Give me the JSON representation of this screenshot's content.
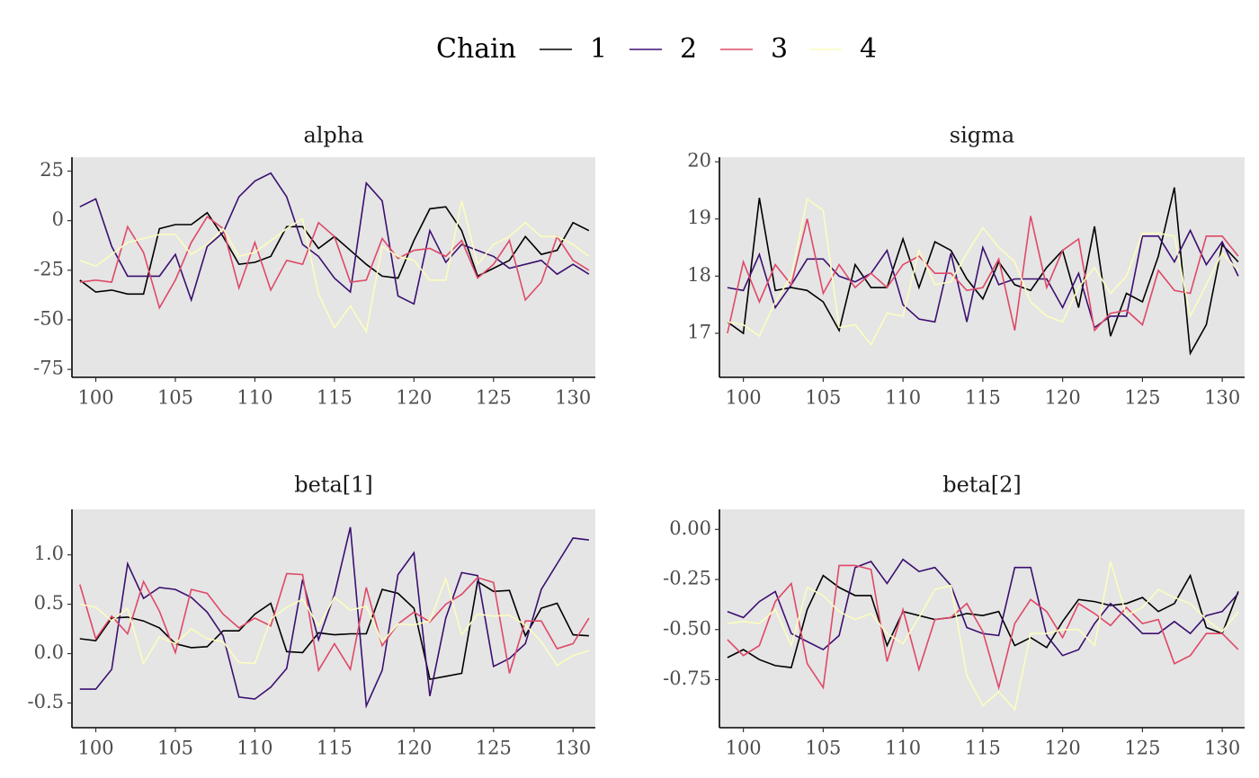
{
  "legend_title": "Chain",
  "chart_data": [
    {
      "type": "line",
      "title": "alpha",
      "x": [
        99,
        100,
        101,
        102,
        103,
        104,
        105,
        106,
        107,
        108,
        109,
        110,
        111,
        112,
        113,
        114,
        115,
        116,
        117,
        118,
        119,
        120,
        121,
        122,
        123,
        124,
        125,
        126,
        127,
        128,
        129,
        130,
        131
      ],
      "xlim": [
        98.5,
        131.4
      ],
      "xticks": [
        100,
        105,
        110,
        115,
        120,
        125,
        130
      ],
      "ylim": [
        -79,
        32
      ],
      "yticks": [
        25,
        0,
        -25,
        -50,
        -75
      ],
      "series": [
        {
          "name": "1",
          "color": "#000000",
          "values": [
            -30,
            -36,
            -35,
            -37,
            -37,
            -4,
            -2,
            -2,
            4,
            -8,
            -22,
            -21,
            -18,
            -3,
            -3,
            -14,
            -8,
            -15,
            -22,
            -28,
            -29,
            -10,
            6,
            7,
            -5,
            -28,
            -24,
            -20,
            -8,
            -17,
            -15,
            -1,
            -5
          ]
        },
        {
          "name": "2",
          "color": "#3b0f70",
          "values": [
            7,
            11,
            -13,
            -28,
            -28,
            -28,
            -17,
            -40,
            -13,
            -6,
            12,
            20,
            24,
            12,
            -12,
            -18,
            -29,
            -36,
            19,
            10,
            -38,
            -42,
            -5,
            -21,
            -12,
            -15,
            -18,
            -24,
            -22,
            -20,
            -27,
            -22,
            -27
          ]
        },
        {
          "name": "3",
          "color": "#de4968",
          "values": [
            -31,
            -30,
            -31,
            -3,
            -16,
            -44,
            -30,
            -11,
            2,
            -4,
            -34,
            -11,
            -35,
            -20,
            -22,
            -1,
            -8,
            -31,
            -30,
            -9,
            -19,
            -15,
            -14,
            -18,
            -10,
            -29,
            -22,
            -10,
            -40,
            -31,
            -8,
            -20,
            -25
          ]
        },
        {
          "name": "4",
          "color": "#fcfdbf",
          "values": [
            -20,
            -23,
            -17,
            -11,
            -9,
            -7,
            -7,
            -17,
            -12,
            -4,
            -18,
            -16,
            -10,
            -4,
            1,
            -37,
            -54,
            -43,
            -56,
            -13,
            -18,
            -20,
            -30,
            -30,
            10,
            -22,
            -12,
            -8,
            -1,
            -8,
            -8,
            -12,
            -18
          ]
        }
      ]
    },
    {
      "type": "line",
      "title": "sigma",
      "x": [
        99,
        100,
        101,
        102,
        103,
        104,
        105,
        106,
        107,
        108,
        109,
        110,
        111,
        112,
        113,
        114,
        115,
        116,
        117,
        118,
        119,
        120,
        121,
        122,
        123,
        124,
        125,
        126,
        127,
        128,
        129,
        130,
        131
      ],
      "xlim": [
        98.5,
        131.4
      ],
      "xticks": [
        100,
        105,
        110,
        115,
        120,
        125,
        130
      ],
      "ylim": [
        16.23,
        20.08
      ],
      "yticks": [
        17,
        18,
        19,
        20
      ],
      "series": [
        {
          "name": "1",
          "color": "#000000",
          "values": [
            17.2,
            17.0,
            19.37,
            17.75,
            17.8,
            17.75,
            17.55,
            17.05,
            18.2,
            17.8,
            17.8,
            18.65,
            17.8,
            18.6,
            18.45,
            17.95,
            17.6,
            18.25,
            17.85,
            17.75,
            18.15,
            18.45,
            17.45,
            18.87,
            16.95,
            17.7,
            17.55,
            18.35,
            19.55,
            16.65,
            17.15,
            18.55,
            18.25
          ]
        },
        {
          "name": "2",
          "color": "#3b0f70",
          "values": [
            17.8,
            17.75,
            18.38,
            17.45,
            17.85,
            18.3,
            18.3,
            18.0,
            17.9,
            18.05,
            18.45,
            17.5,
            17.25,
            17.2,
            18.4,
            17.2,
            18.5,
            17.85,
            17.95,
            17.95,
            17.95,
            17.45,
            18.05,
            17.1,
            17.3,
            17.3,
            18.7,
            18.7,
            18.25,
            18.8,
            18.2,
            18.6,
            18.0
          ]
        },
        {
          "name": "3",
          "color": "#de4968",
          "values": [
            17.0,
            18.25,
            17.55,
            18.2,
            17.85,
            19.0,
            17.7,
            18.2,
            17.8,
            18.05,
            17.8,
            18.2,
            18.35,
            18.05,
            18.05,
            17.75,
            17.8,
            18.3,
            17.05,
            19.05,
            17.8,
            18.45,
            18.65,
            17.05,
            17.35,
            17.4,
            17.15,
            18.1,
            17.75,
            17.7,
            18.7,
            18.7,
            18.35
          ]
        },
        {
          "name": "4",
          "color": "#fcfdbf",
          "values": [
            17.2,
            17.15,
            16.95,
            17.55,
            18.0,
            19.35,
            19.15,
            17.1,
            17.15,
            16.8,
            17.35,
            17.3,
            18.45,
            17.85,
            17.9,
            18.4,
            18.85,
            18.5,
            18.25,
            17.55,
            17.3,
            17.2,
            17.8,
            18.15,
            17.7,
            18.0,
            18.75,
            18.75,
            18.7,
            17.3,
            17.85,
            18.4,
            18.1
          ]
        }
      ]
    },
    {
      "type": "line",
      "title": "beta[1]",
      "x": [
        99,
        100,
        101,
        102,
        103,
        104,
        105,
        106,
        107,
        108,
        109,
        110,
        111,
        112,
        113,
        114,
        115,
        116,
        117,
        118,
        119,
        120,
        121,
        122,
        123,
        124,
        125,
        126,
        127,
        128,
        129,
        130,
        131
      ],
      "xlim": [
        98.5,
        131.4
      ],
      "xticks": [
        100,
        105,
        110,
        115,
        120,
        125,
        130
      ],
      "ylim": [
        -0.75,
        1.46
      ],
      "yticks": [
        -0.5,
        {
          "value": 0,
          "label": "0.0"
        },
        0.5,
        {
          "value": 1,
          "label": "1.0"
        }
      ],
      "series": [
        {
          "name": "1",
          "color": "#000000",
          "values": [
            0.15,
            0.13,
            0.36,
            0.37,
            0.33,
            0.26,
            0.1,
            0.06,
            0.07,
            0.23,
            0.23,
            0.4,
            0.51,
            0.02,
            0.01,
            0.21,
            0.19,
            0.2,
            0.2,
            0.65,
            0.61,
            0.46,
            -0.26,
            -0.23,
            -0.2,
            0.73,
            0.63,
            0.64,
            0.18,
            0.46,
            0.51,
            0.19,
            0.18
          ]
        },
        {
          "name": "2",
          "color": "#3b0f70",
          "values": [
            -0.36,
            -0.36,
            -0.16,
            0.91,
            0.56,
            0.67,
            0.65,
            0.57,
            0.42,
            0.18,
            -0.44,
            -0.46,
            -0.34,
            -0.15,
            0.75,
            0.14,
            0.6,
            1.28,
            -0.53,
            -0.17,
            0.8,
            1.02,
            -0.43,
            0.36,
            0.82,
            0.79,
            -0.13,
            -0.05,
            0.1,
            0.65,
            0.91,
            1.17,
            1.15
          ]
        },
        {
          "name": "3",
          "color": "#de4968",
          "values": [
            0.7,
            0.15,
            0.38,
            0.2,
            0.73,
            0.43,
            0.01,
            0.65,
            0.61,
            0.4,
            0.26,
            0.36,
            0.28,
            0.81,
            0.8,
            -0.17,
            0.1,
            -0.16,
            0.67,
            0.08,
            0.3,
            0.42,
            0.32,
            0.5,
            0.6,
            0.77,
            0.72,
            -0.2,
            0.33,
            0.33,
            0.05,
            0.1,
            0.36
          ]
        },
        {
          "name": "4",
          "color": "#fcfdbf",
          "values": [
            0.5,
            0.47,
            0.33,
            0.46,
            -0.1,
            0.17,
            0.1,
            0.25,
            0.15,
            0.12,
            -0.09,
            -0.1,
            0.35,
            0.47,
            0.55,
            0.28,
            0.57,
            0.44,
            0.48,
            0.12,
            0.3,
            0.29,
            0.33,
            0.76,
            0.19,
            0.4,
            0.38,
            0.39,
            0.29,
            0.12,
            -0.12,
            -0.02,
            0.03
          ]
        }
      ]
    },
    {
      "type": "line",
      "title": "beta[2]",
      "x": [
        99,
        100,
        101,
        102,
        103,
        104,
        105,
        106,
        107,
        108,
        109,
        110,
        111,
        112,
        113,
        114,
        115,
        116,
        117,
        118,
        119,
        120,
        121,
        122,
        123,
        124,
        125,
        126,
        127,
        128,
        129,
        130,
        131
      ],
      "xlim": [
        98.5,
        131.4
      ],
      "xticks": [
        100,
        105,
        110,
        115,
        120,
        125,
        130
      ],
      "ylim": [
        -0.99,
        0.1
      ],
      "yticks": [
        {
          "value": 0,
          "label": "0.00"
        },
        -0.25,
        {
          "value": -0.5,
          "label": "-0.50"
        },
        -0.75
      ],
      "series": [
        {
          "name": "1",
          "color": "#000000",
          "values": [
            -0.64,
            -0.6,
            -0.65,
            -0.68,
            -0.69,
            -0.4,
            -0.23,
            -0.29,
            -0.33,
            -0.33,
            -0.58,
            -0.41,
            -0.43,
            -0.45,
            -0.44,
            -0.42,
            -0.43,
            -0.41,
            -0.58,
            -0.54,
            -0.59,
            -0.46,
            -0.35,
            -0.36,
            -0.38,
            -0.37,
            -0.34,
            -0.41,
            -0.37,
            -0.23,
            -0.49,
            -0.52,
            -0.31
          ]
        },
        {
          "name": "2",
          "color": "#3b0f70",
          "values": [
            -0.41,
            -0.44,
            -0.36,
            -0.31,
            -0.52,
            -0.56,
            -0.6,
            -0.53,
            -0.19,
            -0.16,
            -0.27,
            -0.15,
            -0.21,
            -0.19,
            -0.28,
            -0.49,
            -0.52,
            -0.53,
            -0.19,
            -0.19,
            -0.53,
            -0.63,
            -0.6,
            -0.47,
            -0.37,
            -0.44,
            -0.52,
            -0.52,
            -0.46,
            -0.52,
            -0.43,
            -0.41,
            -0.32
          ]
        },
        {
          "name": "3",
          "color": "#de4968",
          "values": [
            -0.55,
            -0.63,
            -0.58,
            -0.36,
            -0.27,
            -0.67,
            -0.79,
            -0.18,
            -0.18,
            -0.2,
            -0.66,
            -0.4,
            -0.7,
            -0.45,
            -0.44,
            -0.37,
            -0.51,
            -0.79,
            -0.47,
            -0.35,
            -0.41,
            -0.54,
            -0.37,
            -0.42,
            -0.48,
            -0.39,
            -0.47,
            -0.45,
            -0.67,
            -0.63,
            -0.52,
            -0.52,
            -0.6
          ]
        },
        {
          "name": "4",
          "color": "#fcfdbf",
          "values": [
            -0.47,
            -0.46,
            -0.47,
            -0.4,
            -0.58,
            -0.29,
            -0.33,
            -0.41,
            -0.45,
            -0.42,
            -0.52,
            -0.57,
            -0.44,
            -0.3,
            -0.28,
            -0.73,
            -0.88,
            -0.81,
            -0.9,
            -0.52,
            -0.52,
            -0.5,
            -0.5,
            -0.58,
            -0.16,
            -0.43,
            -0.39,
            -0.3,
            -0.34,
            -0.37,
            -0.45,
            -0.51,
            -0.41
          ]
        }
      ]
    }
  ]
}
